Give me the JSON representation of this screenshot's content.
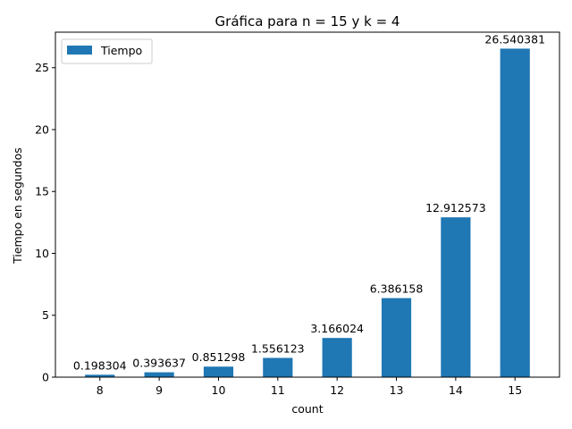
{
  "chart_data": {
    "type": "bar",
    "title": "Gráfica para n = 15 y k = 4",
    "xlabel": "count",
    "ylabel": "Tiempo en segundos",
    "categories": [
      "8",
      "9",
      "10",
      "11",
      "12",
      "13",
      "14",
      "15"
    ],
    "series": [
      {
        "name": "Tiempo",
        "color": "#1f77b4",
        "values": [
          0.198304,
          0.393637,
          0.851298,
          1.556123,
          3.166024,
          6.386158,
          12.912573,
          26.540381
        ],
        "labels": [
          "0.198304",
          "0.393637",
          "0.851298",
          "1.556123",
          "3.166024",
          "6.386158",
          "12.912573",
          "26.540381"
        ]
      }
    ],
    "ylim": [
      0,
      27.87
    ],
    "yticks": [
      0,
      5,
      10,
      15,
      20,
      25
    ],
    "grid": false,
    "legend_position": "top-left"
  }
}
